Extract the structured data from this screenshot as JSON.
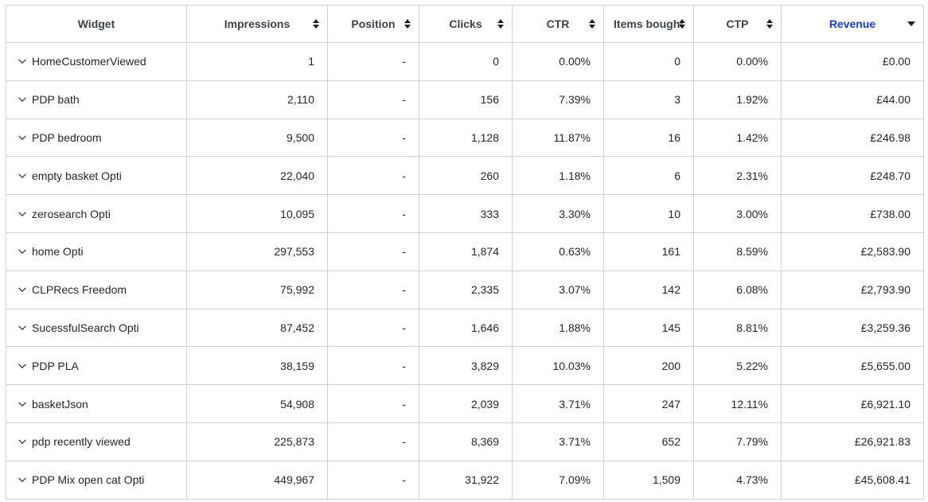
{
  "colors": {
    "accent_blue": "#143cf0",
    "border": "#d2d2d2",
    "header_text": "#3d4248",
    "cell_text": "#23272b"
  },
  "table": {
    "columns": [
      {
        "label": "Widget",
        "sortable": false,
        "sort_icon": "none"
      },
      {
        "label": "Impressions",
        "sortable": true,
        "sort_icon": "up-down"
      },
      {
        "label": "Position",
        "sortable": true,
        "sort_icon": "up-down"
      },
      {
        "label": "Clicks",
        "sortable": true,
        "sort_icon": "up-down"
      },
      {
        "label": "CTR",
        "sortable": true,
        "sort_icon": "up-down"
      },
      {
        "label": "Items bought",
        "sortable": true,
        "sort_icon": "up-down"
      },
      {
        "label": "CTP",
        "sortable": true,
        "sort_icon": "up-down"
      },
      {
        "label": "Revenue",
        "sortable": true,
        "sort_icon": "down-caret",
        "active": true,
        "sort_direction": "desc"
      }
    ],
    "rows": [
      {
        "widget": "HomeCustomerViewed",
        "impressions": "1",
        "position": "-",
        "clicks": "0",
        "ctr": "0.00%",
        "items_bought": "0",
        "ctp": "0.00%",
        "revenue": "£0.00"
      },
      {
        "widget": "PDP bath",
        "impressions": "2,110",
        "position": "-",
        "clicks": "156",
        "ctr": "7.39%",
        "items_bought": "3",
        "ctp": "1.92%",
        "revenue": "£44.00"
      },
      {
        "widget": "PDP bedroom",
        "impressions": "9,500",
        "position": "-",
        "clicks": "1,128",
        "ctr": "11.87%",
        "items_bought": "16",
        "ctp": "1.42%",
        "revenue": "£246.98"
      },
      {
        "widget": "empty basket Opti",
        "impressions": "22,040",
        "position": "-",
        "clicks": "260",
        "ctr": "1.18%",
        "items_bought": "6",
        "ctp": "2.31%",
        "revenue": "£248.70"
      },
      {
        "widget": "zerosearch Opti",
        "impressions": "10,095",
        "position": "-",
        "clicks": "333",
        "ctr": "3.30%",
        "items_bought": "10",
        "ctp": "3.00%",
        "revenue": "£738.00"
      },
      {
        "widget": "home Opti",
        "impressions": "297,553",
        "position": "-",
        "clicks": "1,874",
        "ctr": "0.63%",
        "items_bought": "161",
        "ctp": "8.59%",
        "revenue": "£2,583.90"
      },
      {
        "widget": "CLPRecs Freedom",
        "impressions": "75,992",
        "position": "-",
        "clicks": "2,335",
        "ctr": "3.07%",
        "items_bought": "142",
        "ctp": "6.08%",
        "revenue": "£2,793.90"
      },
      {
        "widget": "SucessfulSearch Opti",
        "impressions": "87,452",
        "position": "-",
        "clicks": "1,646",
        "ctr": "1.88%",
        "items_bought": "145",
        "ctp": "8.81%",
        "revenue": "£3,259.36"
      },
      {
        "widget": "PDP PLA",
        "impressions": "38,159",
        "position": "-",
        "clicks": "3,829",
        "ctr": "10.03%",
        "items_bought": "200",
        "ctp": "5.22%",
        "revenue": "£5,655.00"
      },
      {
        "widget": "basketJson",
        "impressions": "54,908",
        "position": "-",
        "clicks": "2,039",
        "ctr": "3.71%",
        "items_bought": "247",
        "ctp": "12.11%",
        "revenue": "£6,921.10"
      },
      {
        "widget": "pdp recently viewed",
        "impressions": "225,873",
        "position": "-",
        "clicks": "8,369",
        "ctr": "3.71%",
        "items_bought": "652",
        "ctp": "7.79%",
        "revenue": "£26,921.83"
      },
      {
        "widget": "PDP Mix open cat Opti",
        "impressions": "449,967",
        "position": "-",
        "clicks": "31,922",
        "ctr": "7.09%",
        "items_bought": "1,509",
        "ctp": "4.73%",
        "revenue": "£45,608.41"
      }
    ]
  }
}
